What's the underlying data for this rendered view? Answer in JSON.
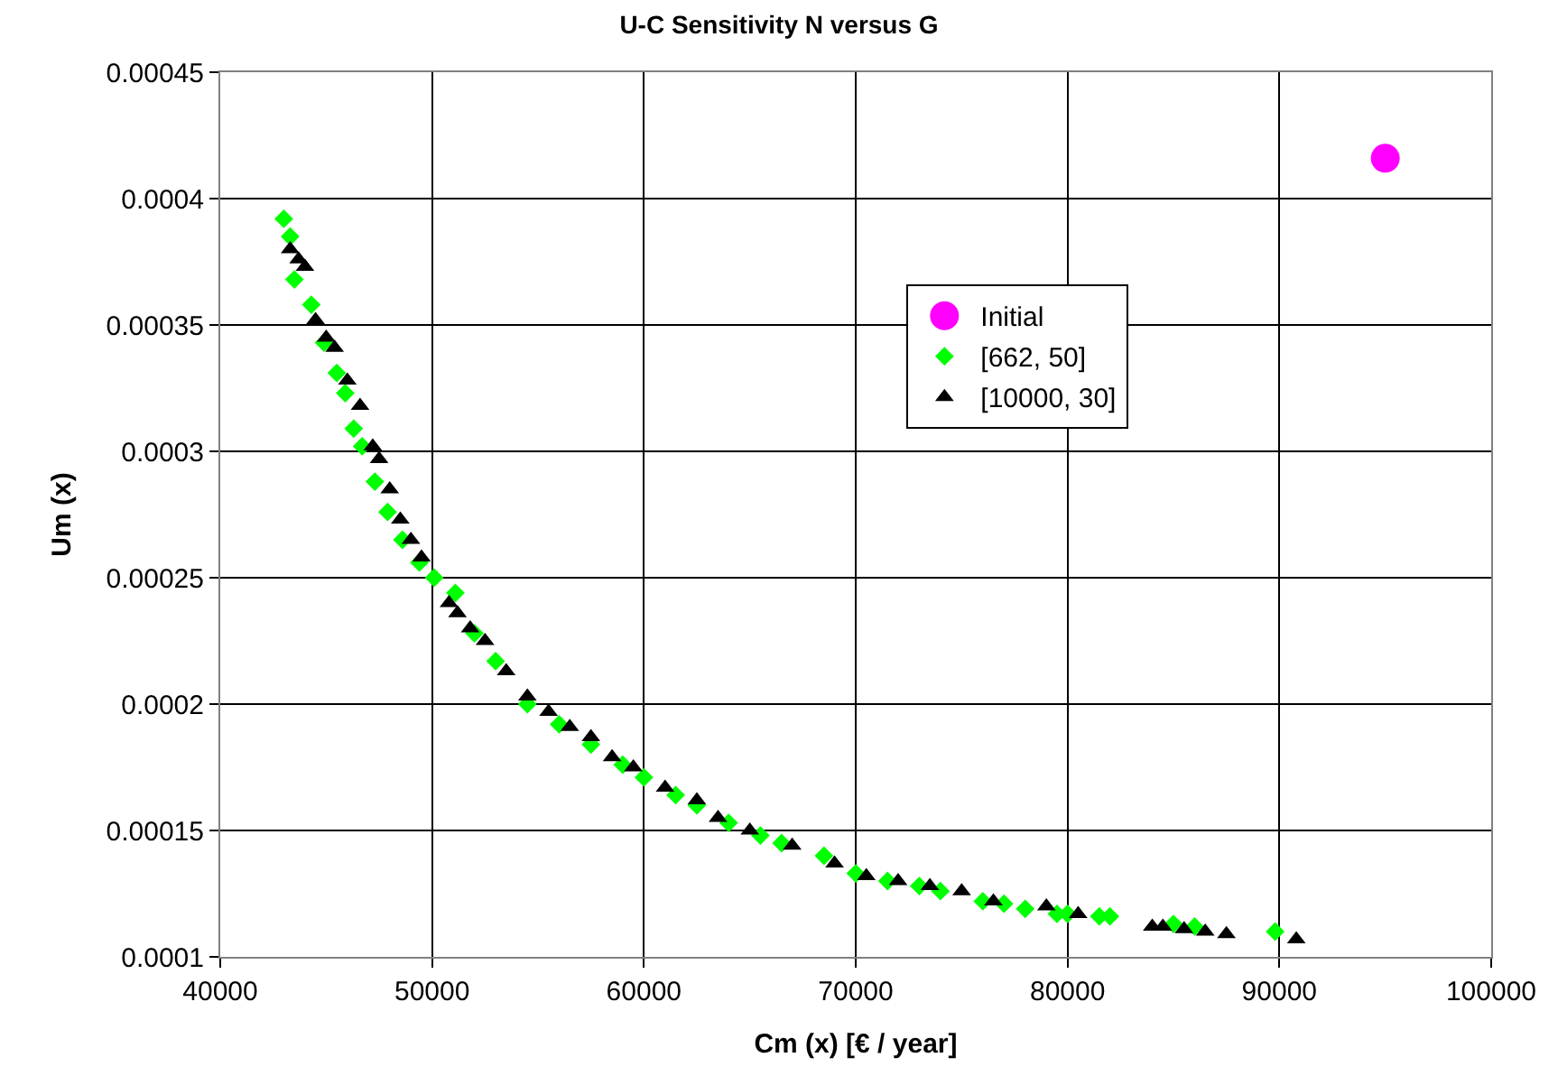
{
  "chart_data": {
    "type": "scatter",
    "title": "U-C Sensitivity N versus G",
    "xlabel": "Cm (x) [€ / year]",
    "ylabel": "Um (x)",
    "xlim": [
      40000,
      100000
    ],
    "xticks": [
      40000,
      50000,
      60000,
      70000,
      80000,
      90000,
      100000
    ],
    "ylim": [
      0.0001,
      0.00045
    ],
    "yticks": [
      0.0001,
      0.00015,
      0.0002,
      0.00025,
      0.0003,
      0.00035,
      0.0004,
      0.00045
    ],
    "grid": true,
    "legend": "right",
    "series": [
      {
        "name": "Initial",
        "color": "#ff00ff",
        "marker": "circle",
        "x": [
          95000
        ],
        "values": [
          0.000416
        ]
      },
      {
        "name": "[662, 50]",
        "color": "#00ff00",
        "marker": "diamond",
        "x": [
          43000,
          43300,
          43500,
          44300,
          44900,
          45500,
          45900,
          46300,
          46700,
          47300,
          47900,
          48600,
          49400,
          50100,
          51100,
          52000,
          53000,
          54500,
          56000,
          57500,
          59000,
          60000,
          61500,
          62500,
          64000,
          65500,
          66500,
          68500,
          70000,
          71500,
          73000,
          74000,
          76000,
          77000,
          78000,
          79500,
          80000,
          81500,
          82000,
          85000,
          86000,
          89800
        ],
        "values": [
          0.000392,
          0.000385,
          0.000368,
          0.000358,
          0.000343,
          0.000331,
          0.000323,
          0.000309,
          0.000302,
          0.000288,
          0.000276,
          0.000265,
          0.000256,
          0.00025,
          0.000244,
          0.000228,
          0.000217,
          0.0002,
          0.000192,
          0.000184,
          0.000176,
          0.000171,
          0.000164,
          0.00016,
          0.000153,
          0.000148,
          0.000145,
          0.00014,
          0.000133,
          0.00013,
          0.000128,
          0.000126,
          0.000122,
          0.000121,
          0.000119,
          0.000117,
          0.000117,
          0.000116,
          0.000116,
          0.000113,
          0.000112,
          0.00011
        ]
      },
      {
        "name": "[10000, 30]",
        "color": "#000000",
        "marker": "triangle",
        "x": [
          43300,
          43700,
          44000,
          44500,
          45000,
          45400,
          46000,
          46600,
          47200,
          47500,
          48000,
          48500,
          49000,
          49500,
          50800,
          51200,
          51800,
          52500,
          53500,
          54500,
          55500,
          56500,
          57500,
          58500,
          59500,
          61000,
          62500,
          63500,
          65000,
          67000,
          69000,
          70500,
          72000,
          73500,
          75000,
          76500,
          79000,
          80500,
          84000,
          84500,
          85500,
          86500,
          87500,
          90800
        ],
        "values": [
          0.00038,
          0.000376,
          0.000373,
          0.000352,
          0.000345,
          0.000341,
          0.000328,
          0.000318,
          0.000302,
          0.000297,
          0.000285,
          0.000273,
          0.000265,
          0.000258,
          0.00024,
          0.000236,
          0.00023,
          0.000225,
          0.000213,
          0.000203,
          0.000197,
          0.000191,
          0.000187,
          0.000179,
          0.000175,
          0.000167,
          0.000162,
          0.000155,
          0.00015,
          0.000144,
          0.000137,
          0.000132,
          0.00013,
          0.000128,
          0.000126,
          0.000122,
          0.00012,
          0.000117,
          0.000112,
          0.000112,
          0.000111,
          0.00011,
          0.000109,
          0.000107
        ]
      }
    ]
  }
}
